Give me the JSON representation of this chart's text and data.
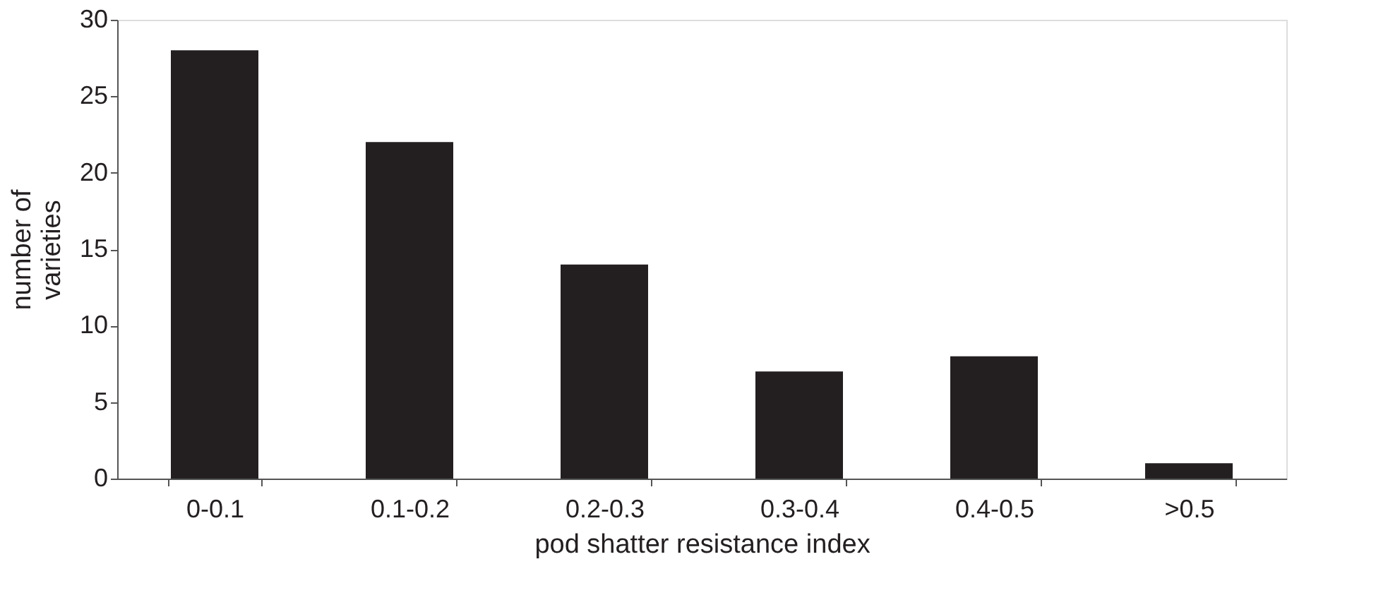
{
  "chart_data": {
    "type": "bar",
    "xlabel": "pod shatter resistance index",
    "ylabel": "number of varieties",
    "categories": [
      "0-0.1",
      "0.1-0.2",
      "0.2-0.3",
      "0.3-0.4",
      "0.4-0.5",
      ">0.5"
    ],
    "values": [
      28,
      22,
      14,
      7,
      8,
      1
    ],
    "color": "#231f20",
    "ylim": [
      0,
      30
    ],
    "yticks": [
      0,
      5,
      10,
      15,
      20,
      25,
      30
    ],
    "grid": false
  }
}
